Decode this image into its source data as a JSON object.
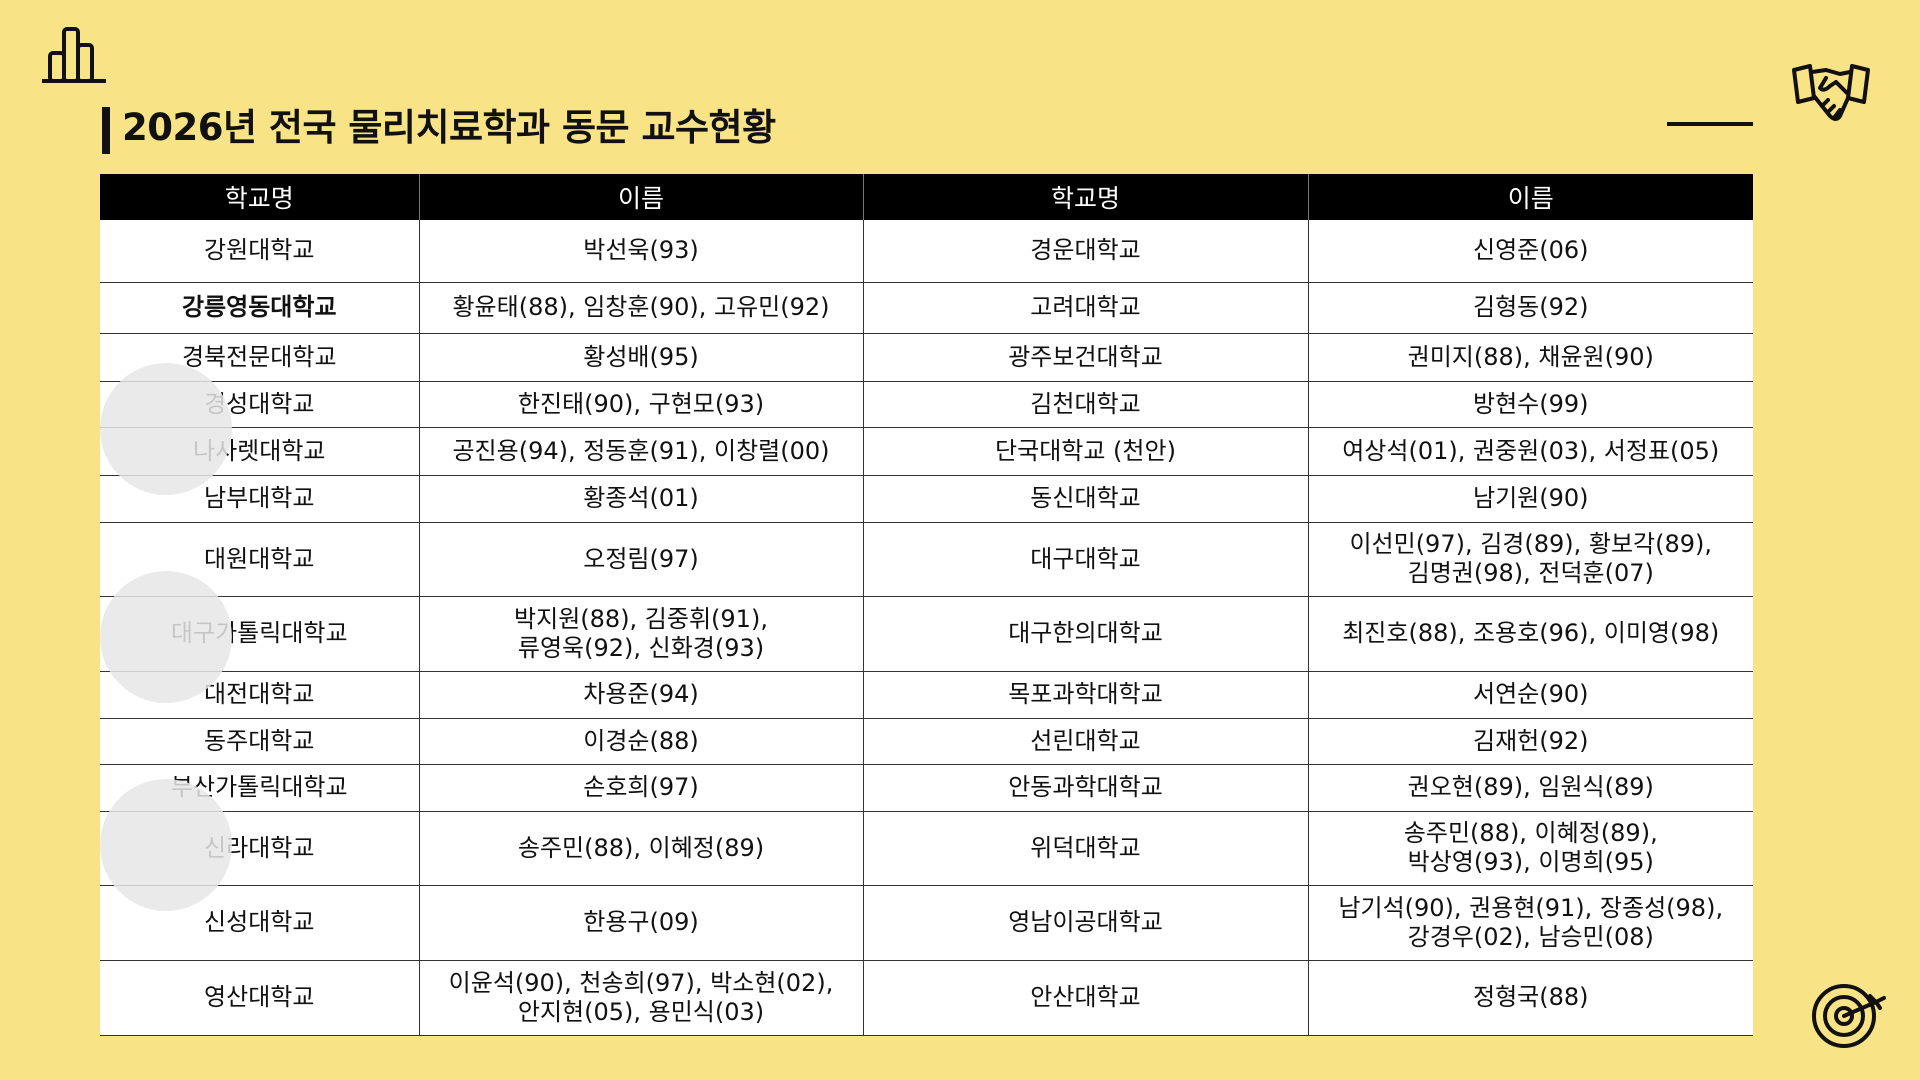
{
  "title": "2026년 전국 물리치료학과 동문 교수현황",
  "icons": {
    "top_left": "bar-chart-icon",
    "top_right": "handshake-icon",
    "bottom_right": "target-icon"
  },
  "colors": {
    "background": "#f8e387",
    "header": "#000000"
  },
  "table": {
    "headers": [
      "학교명",
      "이름",
      "학교명",
      "이름"
    ],
    "rows": [
      [
        "강원대학교",
        "박선욱(93)",
        "경운대학교",
        "신영준(06)"
      ],
      [
        "강릉영동대학교",
        "황윤태(88),  임창훈(90),  고유민(92)",
        "고려대학교",
        "김형동(92)"
      ],
      [
        "경북전문대학교",
        "황성배(95)",
        "광주보건대학교",
        "권미지(88),  채윤원(90)"
      ],
      [
        "경성대학교",
        "한진태(90),  구현모(93)",
        "김천대학교",
        "방현수(99)"
      ],
      [
        "나사렛대학교",
        "공진용(94),  정동훈(91),  이창렬(00)",
        "단국대학교 (천안)",
        "여상석(01),  권중원(03),  서정표(05)"
      ],
      [
        "남부대학교",
        "황종석(01)",
        "동신대학교",
        "남기원(90)"
      ],
      [
        "대원대학교",
        "오정림(97)",
        "대구대학교",
        "이선민(97), 김경(89), 황보각(89),\n김명권(98), 전덕훈(07)"
      ],
      [
        "대구가톨릭대학교",
        "박지원(88), 김중휘(91),\n류영욱(92),    신화경(93)",
        "대구한의대학교",
        "최진호(88), 조용호(96), 이미영(98)"
      ],
      [
        "대전대학교",
        "차용준(94)",
        "목포과학대학교",
        "서연순(90)"
      ],
      [
        "동주대학교",
        "이경순(88)",
        "선린대학교",
        "김재헌(92)"
      ],
      [
        "부산가톨릭대학교",
        "손호희(97)",
        "안동과학대학교",
        "권오현(89),  임원식(89)"
      ],
      [
        "신라대학교",
        "송주민(88),  이혜정(89)",
        "위덕대학교",
        "송주민(88),  이혜정(89),\n박상영(93),  이명희(95)"
      ],
      [
        "신성대학교",
        "한용구(09)",
        "영남이공대학교",
        "남기석(90), 권용현(91), 장종성(98),\n강경우(02), 남승민(08)"
      ],
      [
        "영산대학교",
        "이윤석(90), 천송희(97),    박소현(02),\n안지현(05),    용민식(03)",
        "안산대학교",
        "정형국(88)"
      ]
    ]
  }
}
